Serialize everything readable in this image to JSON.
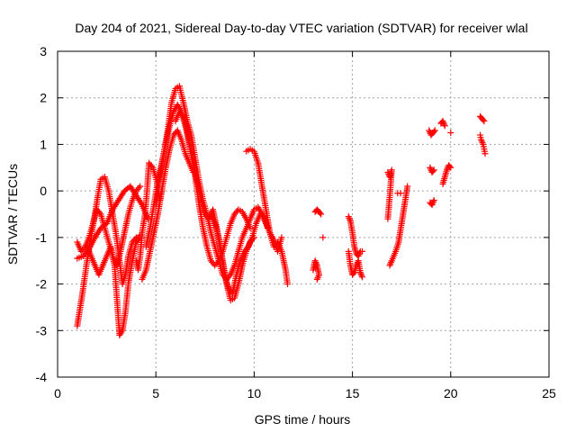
{
  "chart_data": {
    "type": "scatter",
    "title": "Day 204 of 2021, Sidereal Day-to-day VTEC variation (SDTVAR) for receiver wlal",
    "xlabel": "GPS time / hours",
    "ylabel": "SDTVAR / TECUs",
    "xlim": [
      0,
      25
    ],
    "ylim": [
      -4,
      3
    ],
    "xticks": [
      0,
      5,
      10,
      15,
      20,
      25
    ],
    "xtick_labels": [
      "0",
      "5",
      "10",
      "15",
      "20",
      "25"
    ],
    "yticks": [
      -4,
      -3,
      -2,
      -1,
      0,
      1,
      2,
      3
    ],
    "ytick_labels": [
      "-4",
      "-3",
      "-2",
      "-1",
      "0",
      "1",
      "2",
      "3"
    ],
    "grid": true,
    "marker": "+",
    "series": [
      {
        "name": "SDTVAR",
        "color": "#ff0000",
        "tracks": [
          [
            [
              1.0,
              -2.9
            ],
            [
              1.15,
              -2.5
            ],
            [
              1.3,
              -2.1
            ],
            [
              1.5,
              -1.5
            ],
            [
              1.7,
              -1.0
            ],
            [
              1.9,
              -0.5
            ],
            [
              2.05,
              -0.1
            ],
            [
              2.2,
              0.25
            ],
            [
              2.4,
              0.3
            ],
            [
              2.6,
              0.0
            ],
            [
              2.8,
              -0.5
            ],
            [
              3.0,
              -1.0
            ],
            [
              3.15,
              -1.5
            ],
            [
              3.3,
              -2.0
            ],
            [
              3.45,
              -1.8
            ],
            [
              3.6,
              -1.4
            ],
            [
              3.8,
              -1.1
            ],
            [
              4.0,
              -1.0
            ],
            [
              4.15,
              -1.05
            ]
          ],
          [
            [
              1.0,
              -1.1
            ],
            [
              1.2,
              -1.3
            ],
            [
              1.4,
              -1.2
            ],
            [
              1.6,
              -1.0
            ],
            [
              1.8,
              -0.7
            ],
            [
              2.0,
              -0.4
            ],
            [
              2.2,
              -0.5
            ],
            [
              2.4,
              -0.8
            ],
            [
              2.6,
              -1.1
            ],
            [
              2.8,
              -1.4
            ],
            [
              3.0,
              -1.6
            ],
            [
              3.2,
              -1.3
            ],
            [
              3.4,
              -0.9
            ],
            [
              3.6,
              -0.5
            ],
            [
              3.8,
              -0.2
            ],
            [
              4.0,
              0.0
            ],
            [
              4.2,
              0.1
            ]
          ],
          [
            [
              1.0,
              -1.45
            ],
            [
              1.3,
              -1.4
            ],
            [
              1.6,
              -1.25
            ],
            [
              1.9,
              -1.0
            ],
            [
              2.2,
              -0.8
            ],
            [
              2.5,
              -0.7
            ],
            [
              2.8,
              -0.4
            ],
            [
              3.1,
              -0.2
            ],
            [
              3.4,
              0.0
            ],
            [
              3.7,
              0.1
            ],
            [
              4.0,
              -0.1
            ],
            [
              4.3,
              -0.3
            ],
            [
              4.6,
              -0.6
            ]
          ],
          [
            [
              1.5,
              -1.2
            ],
            [
              1.8,
              -1.5
            ],
            [
              2.1,
              -1.8
            ],
            [
              2.4,
              -1.5
            ],
            [
              2.7,
              -1.2
            ],
            [
              2.9,
              -1.6
            ],
            [
              3.05,
              -2.5
            ],
            [
              3.15,
              -3.1
            ],
            [
              3.3,
              -3.0
            ],
            [
              3.45,
              -2.6
            ],
            [
              3.6,
              -2.0
            ],
            [
              3.8,
              -1.5
            ],
            [
              4.0,
              -1.1
            ],
            [
              4.2,
              -0.95
            ]
          ],
          [
            [
              4.0,
              -1.5
            ],
            [
              4.1,
              -1.7
            ],
            [
              4.2,
              -1.4
            ],
            [
              4.3,
              -0.9
            ],
            [
              4.45,
              -0.5
            ],
            [
              4.55,
              0.0
            ],
            [
              4.65,
              0.6
            ],
            [
              4.85,
              0.5
            ],
            [
              5.05,
              0.2
            ],
            [
              5.2,
              -0.2
            ],
            [
              5.3,
              0.0
            ]
          ],
          [
            [
              4.3,
              -1.9
            ],
            [
              4.5,
              -1.7
            ],
            [
              4.7,
              -1.3
            ],
            [
              4.9,
              -0.9
            ],
            [
              5.1,
              -0.5
            ],
            [
              5.3,
              0.0
            ],
            [
              5.5,
              0.5
            ],
            [
              5.7,
              0.9
            ],
            [
              5.9,
              1.2
            ],
            [
              6.1,
              1.3
            ],
            [
              6.3,
              1.1
            ],
            [
              6.5,
              0.8
            ],
            [
              6.7,
              0.6
            ],
            [
              6.9,
              0.4
            ]
          ],
          [
            [
              4.5,
              -1.2
            ],
            [
              4.7,
              -0.8
            ],
            [
              4.9,
              -0.3
            ],
            [
              5.1,
              0.2
            ],
            [
              5.3,
              0.6
            ],
            [
              5.5,
              1.0
            ],
            [
              5.7,
              1.4
            ],
            [
              5.9,
              1.7
            ],
            [
              6.1,
              1.85
            ],
            [
              6.3,
              1.7
            ],
            [
              6.5,
              1.4
            ],
            [
              6.7,
              1.0
            ],
            [
              6.9,
              0.6
            ],
            [
              7.1,
              0.2
            ],
            [
              7.3,
              -0.2
            ],
            [
              7.5,
              -0.5
            ],
            [
              7.7,
              -0.6
            ],
            [
              7.9,
              -0.4
            ],
            [
              8.1,
              -0.8
            ],
            [
              8.3,
              -1.3
            ],
            [
              8.5,
              -1.8
            ],
            [
              8.7,
              -2.1
            ],
            [
              8.9,
              -2.2
            ],
            [
              9.1,
              -1.8
            ],
            [
              9.3,
              -1.5
            ],
            [
              9.5,
              -1.3
            ],
            [
              9.7,
              -1.2
            ],
            [
              9.9,
              -1.0
            ],
            [
              10.1,
              -0.7
            ],
            [
              10.3,
              -0.5
            ],
            [
              10.5,
              -0.55
            ],
            [
              10.7,
              -0.8
            ]
          ],
          [
            [
              5.0,
              -0.3
            ],
            [
              5.2,
              0.3
            ],
            [
              5.4,
              0.8
            ],
            [
              5.6,
              1.3
            ],
            [
              5.8,
              1.9
            ],
            [
              6.0,
              2.2
            ],
            [
              6.2,
              2.25
            ],
            [
              6.4,
              1.9
            ],
            [
              6.6,
              1.5
            ],
            [
              6.8,
              1.2
            ],
            [
              7.0,
              0.7
            ],
            [
              7.2,
              0.2
            ],
            [
              7.4,
              -0.2
            ],
            [
              7.6,
              -0.5
            ],
            [
              7.8,
              -0.9
            ],
            [
              8.0,
              -1.2
            ],
            [
              8.2,
              -1.5
            ],
            [
              8.4,
              -1.8
            ],
            [
              8.6,
              -1.9
            ],
            [
              8.8,
              -1.8
            ],
            [
              9.0,
              -1.6
            ],
            [
              9.2,
              -1.3
            ],
            [
              9.4,
              -1.0
            ],
            [
              9.6,
              -0.8
            ],
            [
              9.8,
              -0.6
            ],
            [
              10.0,
              -0.4
            ],
            [
              10.2,
              -0.35
            ],
            [
              10.4,
              -0.5
            ],
            [
              10.6,
              -0.7
            ],
            [
              10.8,
              -0.9
            ],
            [
              11.0,
              -1.05
            ],
            [
              11.2,
              -1.3
            ],
            [
              11.4,
              -1.0
            ]
          ],
          [
            [
              6.0,
              1.5
            ],
            [
              6.2,
              1.7
            ],
            [
              6.4,
              1.6
            ],
            [
              6.6,
              1.3
            ],
            [
              6.8,
              0.8
            ],
            [
              7.0,
              0.3
            ],
            [
              7.2,
              -0.3
            ],
            [
              7.4,
              -0.8
            ],
            [
              7.6,
              -1.2
            ],
            [
              7.8,
              -1.5
            ],
            [
              8.0,
              -1.6
            ],
            [
              8.2,
              -1.5
            ],
            [
              8.4,
              -1.3
            ],
            [
              8.6,
              -1.0
            ],
            [
              8.8,
              -0.7
            ],
            [
              9.0,
              -0.5
            ],
            [
              9.2,
              -0.4
            ],
            [
              9.4,
              -0.45
            ],
            [
              9.6,
              -0.6
            ],
            [
              9.8,
              -0.8
            ]
          ],
          [
            [
              7.8,
              -0.5
            ],
            [
              8.0,
              -0.7
            ],
            [
              8.2,
              -1.0
            ],
            [
              8.4,
              -1.5
            ],
            [
              8.6,
              -2.0
            ],
            [
              8.8,
              -2.35
            ],
            [
              9.0,
              -2.3
            ],
            [
              9.2,
              -2.0
            ],
            [
              9.4,
              -1.6
            ],
            [
              9.6,
              -1.3
            ],
            [
              9.8,
              -1.1
            ],
            [
              10.0,
              -1.0
            ]
          ],
          [
            [
              9.6,
              0.85
            ],
            [
              9.8,
              0.9
            ],
            [
              10.0,
              0.85
            ],
            [
              10.2,
              0.6
            ],
            [
              10.4,
              0.1
            ],
            [
              10.6,
              -0.4
            ],
            [
              10.8,
              -0.9
            ],
            [
              11.0,
              -1.2
            ],
            [
              11.2,
              -1.1
            ],
            [
              11.4,
              -1.3
            ],
            [
              11.6,
              -1.7
            ],
            [
              11.7,
              -2.0
            ]
          ],
          [
            [
              13.1,
              -0.45
            ],
            [
              13.2,
              -0.4
            ],
            [
              13.3,
              -0.45
            ],
            [
              13.4,
              -0.5
            ]
          ],
          [
            [
              13.0,
              -1.7
            ],
            [
              13.1,
              -1.5
            ],
            [
              13.2,
              -1.6
            ],
            [
              13.3,
              -1.8
            ],
            [
              13.2,
              -1.9
            ]
          ],
          [
            [
              13.5,
              -1.0
            ]
          ],
          [
            [
              14.8,
              -0.55
            ],
            [
              14.9,
              -0.65
            ],
            [
              15.0,
              -0.9
            ],
            [
              15.1,
              -1.2
            ],
            [
              15.2,
              -1.35
            ],
            [
              15.3,
              -1.4
            ],
            [
              15.4,
              -1.3
            ],
            [
              15.5,
              -1.3
            ]
          ],
          [
            [
              14.8,
              -1.3
            ],
            [
              14.9,
              -1.6
            ],
            [
              15.0,
              -1.8
            ],
            [
              15.1,
              -1.75
            ],
            [
              15.2,
              -1.6
            ],
            [
              15.3,
              -1.5
            ],
            [
              15.4,
              -1.75
            ],
            [
              15.5,
              -1.85
            ]
          ],
          [
            [
              16.8,
              0.4
            ],
            [
              16.9,
              0.3
            ],
            [
              17.0,
              0.45
            ],
            [
              16.9,
              -0.1
            ],
            [
              16.8,
              -0.6
            ]
          ],
          [
            [
              16.9,
              -1.6
            ],
            [
              17.0,
              -1.5
            ],
            [
              17.2,
              -1.3
            ],
            [
              17.35,
              -1.1
            ],
            [
              17.5,
              -0.7
            ],
            [
              17.65,
              -0.3
            ],
            [
              17.8,
              0.1
            ]
          ],
          [
            [
              17.3,
              -0.05
            ],
            [
              17.45,
              -0.05
            ]
          ],
          [
            [
              18.9,
              1.3
            ],
            [
              19.0,
              1.2
            ],
            [
              19.1,
              1.25
            ],
            [
              19.2,
              1.3
            ]
          ],
          [
            [
              18.95,
              0.5
            ],
            [
              19.05,
              0.4
            ],
            [
              19.15,
              0.45
            ]
          ],
          [
            [
              18.95,
              -0.25
            ],
            [
              19.05,
              -0.3
            ],
            [
              19.15,
              -0.2
            ]
          ],
          [
            [
              19.5,
              1.45
            ],
            [
              19.6,
              1.5
            ],
            [
              19.7,
              1.4
            ]
          ],
          [
            [
              19.6,
              0.15
            ],
            [
              19.7,
              0.3
            ],
            [
              19.8,
              0.45
            ],
            [
              19.9,
              0.55
            ],
            [
              20.0,
              0.5
            ]
          ],
          [
            [
              20.0,
              1.25
            ]
          ],
          [
            [
              21.5,
              1.6
            ],
            [
              21.6,
              1.55
            ],
            [
              21.7,
              1.5
            ]
          ],
          [
            [
              21.5,
              1.2
            ],
            [
              21.55,
              1.1
            ],
            [
              21.65,
              1.0
            ],
            [
              21.7,
              0.9
            ],
            [
              21.75,
              0.8
            ]
          ]
        ]
      }
    ]
  }
}
